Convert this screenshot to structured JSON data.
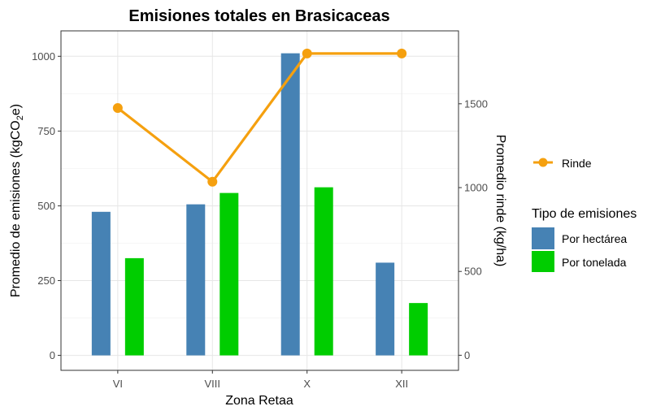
{
  "chart_data": {
    "type": "bar",
    "title": "Emisiones totales en Brasicaceas",
    "xlabel": "Zona Retaa",
    "ylabel": "Promedio de emisiones (kgCO₂e)",
    "ylabel_parts": {
      "before": "Promedio de emisiones (kgCO",
      "sub": "2",
      "after": "e)"
    },
    "y2label": "Promedio rinde (kg/ha)",
    "categories": [
      "VI",
      "VIII",
      "X",
      "XII"
    ],
    "ylim": [
      -50,
      1085
    ],
    "y_ticks": [
      0,
      250,
      500,
      750,
      1000
    ],
    "y2lim": [
      -90,
      1935
    ],
    "y2_ticks": [
      0,
      500,
      1000,
      1500
    ],
    "grid": true,
    "legend_position": "right",
    "series": [
      {
        "name": "Por hectárea",
        "kind": "bar",
        "axis": "left",
        "color": "#4682B4",
        "values": [
          480,
          505,
          1010,
          310
        ]
      },
      {
        "name": "Por tonelada",
        "kind": "bar",
        "axis": "left",
        "color": "#00CD00",
        "values": [
          325,
          543,
          562,
          175
        ]
      },
      {
        "name": "Rinde",
        "kind": "line",
        "axis": "right",
        "color": "#F5A00F",
        "values": [
          1475,
          1035,
          1800,
          1800
        ]
      }
    ],
    "legend": {
      "line_label": "Rinde",
      "bars_title": "Tipo de emisiones",
      "bar_labels": [
        "Por hectárea",
        "Por tonelada"
      ]
    }
  }
}
